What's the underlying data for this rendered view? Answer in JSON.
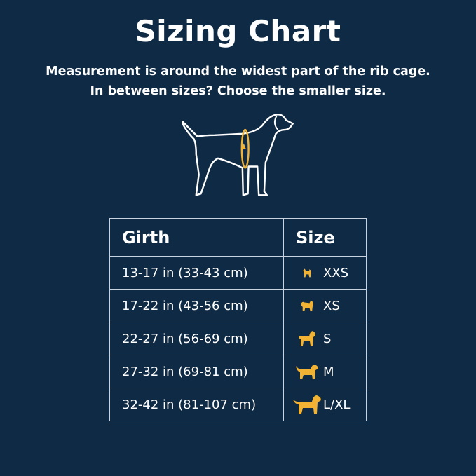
{
  "title": "Sizing Chart",
  "subtitle_line1": "Measurement is around the widest part of the rib cage.",
  "subtitle_line2": "In between sizes? Choose the smaller size.",
  "colors": {
    "background": "#0f2a44",
    "accent": "#f2b233",
    "text": "#ffffff"
  },
  "table": {
    "headers": [
      "Girth",
      "Size"
    ],
    "rows": [
      {
        "girth": "13-17 in (33-43 cm)",
        "size": "XXS",
        "icon": "tiny-dog-icon"
      },
      {
        "girth": "17-22 in (43-56 cm)",
        "size": "XS",
        "icon": "small-fluffy-dog-icon"
      },
      {
        "girth": "22-27 in (56-69 cm)",
        "size": "S",
        "icon": "small-dog-icon"
      },
      {
        "girth": "27-32 in (69-81 cm)",
        "size": "M",
        "icon": "medium-dog-icon"
      },
      {
        "girth": "32-42 in (81-107 cm)",
        "size": "L/XL",
        "icon": "large-dog-icon"
      }
    ]
  }
}
